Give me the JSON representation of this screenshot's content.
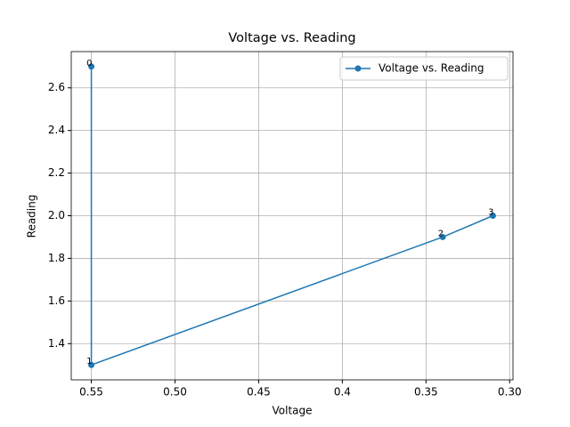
{
  "chart_data": {
    "type": "line",
    "title": "Voltage vs. Reading",
    "x_label": "Voltage",
    "y_label": "Reading",
    "x": [
      0.55,
      0.55,
      0.34,
      0.31
    ],
    "series": [
      {
        "name": "Voltage vs. Reading",
        "color": "#1f77b4",
        "values": [
          2.7,
          1.3,
          1.9,
          2.0
        ]
      }
    ],
    "point_labels": [
      "0",
      "1",
      "2",
      "3"
    ],
    "xlim": [
      0.562,
      0.298
    ],
    "xticks": [
      0.55,
      {
        "value": 0.5,
        "label": "0.50"
      },
      0.45,
      0.4,
      0.35,
      {
        "value": 0.3,
        "label": "0.30"
      }
    ],
    "ylim": [
      1.23,
      2.77
    ],
    "yticks": [
      1.4,
      1.6,
      1.8,
      {
        "value": 2.0,
        "label": "2.0"
      },
      2.2,
      2.4,
      2.6
    ],
    "grid": true,
    "legend": "upper right"
  }
}
